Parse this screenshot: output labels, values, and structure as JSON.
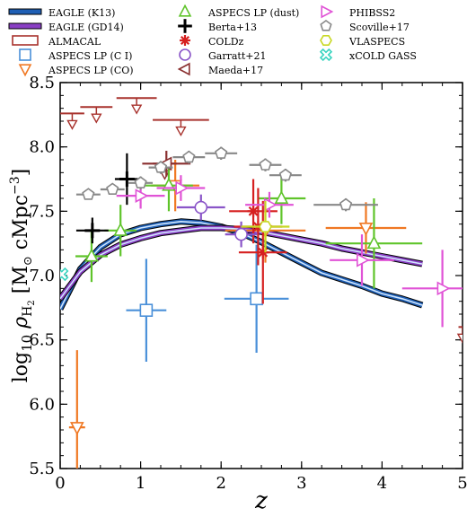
{
  "chart_data": {
    "type": "scatter",
    "title": "",
    "xlabel": "z",
    "ylabel_parts": {
      "pre": "log",
      "pre_sub": "10",
      "rho": " ρ",
      "rho_sub": "H",
      "rho_subsub": "2",
      "bracket_open": " [M",
      "sun": "⊙",
      "unit": " cMpc",
      "exp": "−3",
      "bracket_close": "]"
    },
    "xlim": [
      0,
      5
    ],
    "ylim": [
      5.5,
      8.5
    ],
    "x_ticks": [
      0,
      1,
      2,
      3,
      4,
      5
    ],
    "y_ticks": [
      5.5,
      6.0,
      6.5,
      7.0,
      7.5,
      8.0,
      8.5
    ],
    "x_tick_labels": [
      "0",
      "1",
      "2",
      "3",
      "4",
      "5"
    ],
    "y_tick_labels": [
      "5.5",
      "6.0",
      "6.5",
      "7.0",
      "7.5",
      "8.0",
      "8.5"
    ],
    "legend_position": "top",
    "models": [
      {
        "name": "EAGLE (K13)",
        "color": "#1f5fb4",
        "x": [
          0,
          0.25,
          0.5,
          0.75,
          1.0,
          1.25,
          1.5,
          1.75,
          2.0,
          2.25,
          2.5,
          2.75,
          3.0,
          3.25,
          3.5,
          3.75,
          4.0,
          4.25,
          4.5
        ],
        "y": [
          6.74,
          7.05,
          7.22,
          7.32,
          7.37,
          7.4,
          7.42,
          7.41,
          7.38,
          7.33,
          7.26,
          7.18,
          7.1,
          7.02,
          6.97,
          6.92,
          6.86,
          6.82,
          6.77
        ]
      },
      {
        "name": "EAGLE (GD14)",
        "color": "#8a3fc4",
        "x": [
          0,
          0.25,
          0.5,
          0.75,
          1.0,
          1.25,
          1.5,
          1.75,
          2.0,
          2.25,
          2.5,
          2.75,
          3.0,
          3.25,
          3.5,
          3.75,
          4.0,
          4.25,
          4.5
        ],
        "y": [
          6.82,
          7.03,
          7.16,
          7.24,
          7.29,
          7.33,
          7.35,
          7.37,
          7.37,
          7.36,
          7.34,
          7.31,
          7.28,
          7.25,
          7.21,
          7.18,
          7.15,
          7.12,
          7.09
        ]
      }
    ],
    "series": [
      {
        "name": "ALMACAL",
        "marker": "square-open",
        "color": "#a8322d",
        "points": []
      },
      {
        "name": "ASPECS LP (C I)",
        "marker": "square-open",
        "color": "#4a90d9",
        "points": [
          {
            "x": 1.07,
            "y": 6.73,
            "xerr": 0.25,
            "yerr": 0.4
          },
          {
            "x": 2.44,
            "y": 6.82,
            "xerr": 0.4,
            "yerr": 0.42
          }
        ]
      },
      {
        "name": "ASPECS LP (CO)",
        "marker": "tri-down-open",
        "color": "#f07823",
        "points": [
          {
            "x": 0.21,
            "y": 5.82,
            "xerr": 0.1,
            "yerr": 0.6
          },
          {
            "x": 1.43,
            "y": 7.7,
            "xerr": 0.3,
            "yerr": 0.2
          },
          {
            "x": 2.55,
            "y": 7.35,
            "xerr": 0.5,
            "yerr": 0.25
          },
          {
            "x": 3.8,
            "y": 7.37,
            "xerr": 0.5,
            "yerr": 0.2
          }
        ]
      },
      {
        "name": "ASPECS LP (dust)",
        "marker": "tri-up-open",
        "color": "#5fc42a",
        "points": [
          {
            "x": 0.39,
            "y": 7.15,
            "xerr": 0.2,
            "yerr": 0.2
          },
          {
            "x": 0.75,
            "y": 7.35,
            "xerr": 0.2,
            "yerr": 0.2
          },
          {
            "x": 1.35,
            "y": 7.7,
            "xerr": 0.3,
            "yerr": 0.2
          },
          {
            "x": 2.75,
            "y": 7.6,
            "xerr": 0.3,
            "yerr": 0.2
          },
          {
            "x": 3.9,
            "y": 7.25,
            "xerr": 0.6,
            "yerr": 0.35
          }
        ]
      },
      {
        "name": "Berta+13",
        "marker": "plus",
        "color": "#000000",
        "points": [
          {
            "x": 0.4,
            "y": 7.35,
            "xerr": 0.2,
            "yerr": 0.1
          },
          {
            "x": 0.83,
            "y": 7.75,
            "xerr": 0.15,
            "yerr": 0.2
          }
        ]
      },
      {
        "name": "COLDz",
        "marker": "star",
        "color": "#d62020",
        "points": [
          {
            "x": 2.4,
            "y": 7.5,
            "xerr": 0.3,
            "yerr": 0.25
          },
          {
            "x": 2.46,
            "y": 7.38,
            "xerr": 0.3,
            "yerr": 0.3
          },
          {
            "x": 2.52,
            "y": 7.18,
            "xerr": 0.3,
            "yerr": 0.4
          }
        ]
      },
      {
        "name": "Garratt+21",
        "marker": "circle-open",
        "color": "#8a55c8",
        "points": [
          {
            "x": 1.75,
            "y": 7.53,
            "xerr": 0.3,
            "yerr": 0.1
          },
          {
            "x": 2.25,
            "y": 7.32,
            "xerr": 0.2,
            "yerr": 0.1
          }
        ]
      },
      {
        "name": "Maeda+17",
        "marker": "tri-left-open",
        "color": "#8a2f2f",
        "points": [
          {
            "x": 1.32,
            "y": 7.87,
            "xerr": 0.3,
            "yerr": 0.1
          }
        ]
      },
      {
        "name": "PHIBSS2",
        "marker": "tri-right-open",
        "color": "#e053d6",
        "points": [
          {
            "x": 1.0,
            "y": 7.62,
            "xerr": 0.3,
            "yerr": 0.1
          },
          {
            "x": 1.5,
            "y": 7.68,
            "xerr": 0.3,
            "yerr": 0.1
          },
          {
            "x": 2.6,
            "y": 7.55,
            "xerr": 0.3,
            "yerr": 0.1
          },
          {
            "x": 3.75,
            "y": 7.12,
            "xerr": 0.4,
            "yerr": 0.2
          },
          {
            "x": 4.75,
            "y": 6.9,
            "xerr": 0.5,
            "yerr": 0.3
          }
        ]
      },
      {
        "name": "Scoville+17",
        "marker": "pentagon-open",
        "color": "#888888",
        "points": [
          {
            "x": 0.35,
            "y": 7.63,
            "xerr": 0.15,
            "yerr": 0.04
          },
          {
            "x": 0.65,
            "y": 7.67,
            "xerr": 0.15,
            "yerr": 0.04
          },
          {
            "x": 1.0,
            "y": 7.72,
            "xerr": 0.15,
            "yerr": 0.05
          },
          {
            "x": 1.25,
            "y": 7.84,
            "xerr": 0.15,
            "yerr": 0.05
          },
          {
            "x": 1.6,
            "y": 7.92,
            "xerr": 0.2,
            "yerr": 0.05
          },
          {
            "x": 2.0,
            "y": 7.95,
            "xerr": 0.2,
            "yerr": 0.05
          },
          {
            "x": 2.55,
            "y": 7.86,
            "xerr": 0.2,
            "yerr": 0.05
          },
          {
            "x": 2.8,
            "y": 7.78,
            "xerr": 0.2,
            "yerr": 0.05
          },
          {
            "x": 3.55,
            "y": 7.55,
            "xerr": 0.4,
            "yerr": 0.05
          }
        ]
      },
      {
        "name": "VLASPECS",
        "marker": "hexagon-open",
        "color": "#c8d824",
        "points": [
          {
            "x": 2.55,
            "y": 7.38,
            "xerr": 0.3,
            "yerr": 0.2
          }
        ]
      },
      {
        "name": "xCOLD GASS",
        "marker": "x-open",
        "color": "#3ad4c0",
        "points": [
          {
            "x": 0.02,
            "y": 7.01,
            "xerr": 0.02,
            "yerr": 0.02
          }
        ]
      }
    ],
    "upper_limits": [
      {
        "series": "ALMACAL",
        "color": "#a8322d",
        "points": [
          {
            "x": 0.15,
            "y": 8.26,
            "xerr": 0.15
          },
          {
            "x": 0.45,
            "y": 8.31,
            "xerr": 0.2
          },
          {
            "x": 0.95,
            "y": 8.38,
            "xerr": 0.25
          },
          {
            "x": 1.5,
            "y": 8.21,
            "xerr": 0.35
          },
          {
            "x": 5.0,
            "y": 6.6,
            "xerr": 0.05
          }
        ]
      },
      {
        "series": "Maeda+17",
        "color": "#8a2f2f",
        "points": [
          {
            "x": 1.3,
            "y": 7.87,
            "xerr": 0.15
          }
        ]
      }
    ]
  }
}
